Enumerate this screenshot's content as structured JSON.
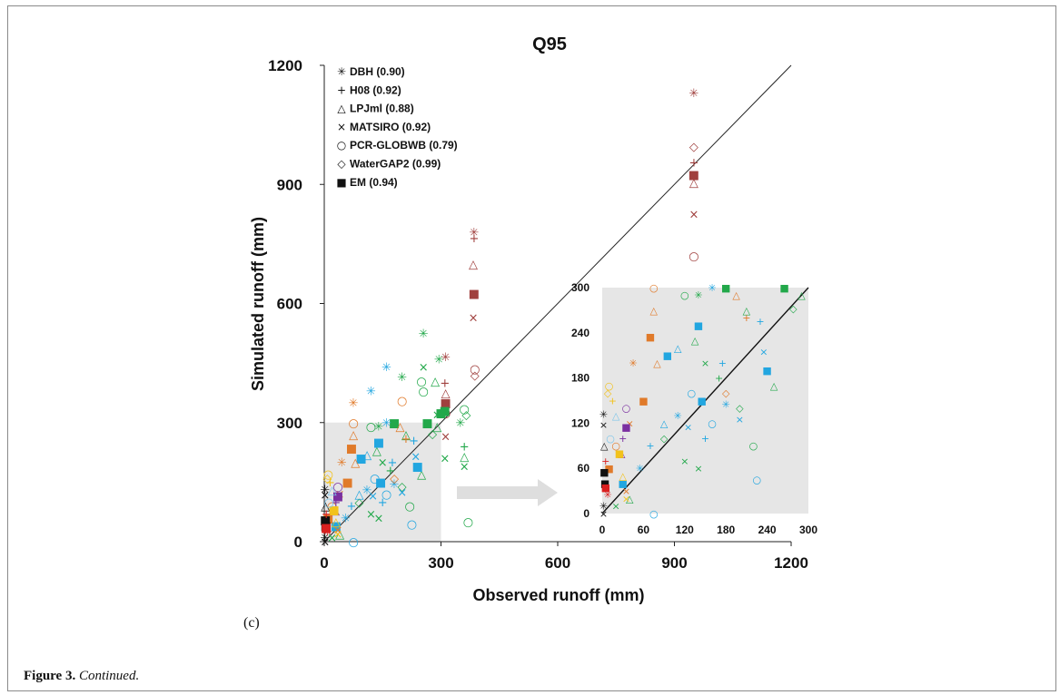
{
  "figure": {
    "panel_label": "(c)",
    "caption_number": "Figure 3.",
    "caption_text": "Continued."
  },
  "chart_data": {
    "type": "scatter",
    "title": "Q95",
    "xlabel": "Observed runoff (mm)",
    "ylabel": "Simulated runoff (mm)",
    "xlim": [
      0,
      1200
    ],
    "ylim": [
      0,
      1200
    ],
    "xticks": [
      "0",
      "300",
      "600",
      "900",
      "1200"
    ],
    "yticks": [
      "0",
      "300",
      "600",
      "900",
      "1200"
    ],
    "grid": false,
    "one_to_one_line": true,
    "legend_position": "top-left",
    "legend": [
      {
        "marker": "asterisk",
        "label": "DBH (0.90)"
      },
      {
        "marker": "plus",
        "label": "H08 (0.92)"
      },
      {
        "marker": "triangle",
        "label": "LPJml (0.88)"
      },
      {
        "marker": "cross",
        "label": "MATSIRO (0.92)"
      },
      {
        "marker": "circle",
        "label": "PCR-GLOBWB (0.79)"
      },
      {
        "marker": "diamond",
        "label": "WaterGAP2 (0.99)"
      },
      {
        "marker": "square",
        "label": "EM (0.94)"
      }
    ],
    "marker_glyphs": {
      "asterisk": "✳",
      "plus": "+",
      "triangle": "△",
      "cross": "×",
      "circle": "○",
      "diamond": "◇",
      "square": "■"
    },
    "colors": {
      "brown": "#a0403e",
      "green": "#22a84a",
      "blue": "#22a6e0",
      "orange": "#e07a2a",
      "purple": "#7b2fa0",
      "black": "#111111",
      "yellow": "#f2c21b",
      "red": "#d92020",
      "lightblue": "#7dc5ea"
    },
    "zoom_region": {
      "x": [
        0,
        300
      ],
      "y": [
        0,
        300
      ],
      "shade": "#e6e6e6"
    },
    "points": [
      {
        "x": 385,
        "y": 780,
        "m": "asterisk",
        "c": "brown"
      },
      {
        "x": 385,
        "y": 765,
        "m": "plus",
        "c": "brown"
      },
      {
        "x": 383,
        "y": 700,
        "m": "triangle",
        "c": "brown"
      },
      {
        "x": 385,
        "y": 625,
        "m": "square",
        "c": "brown"
      },
      {
        "x": 383,
        "y": 565,
        "m": "cross",
        "c": "brown"
      },
      {
        "x": 387,
        "y": 435,
        "m": "circle",
        "c": "brown"
      },
      {
        "x": 387,
        "y": 420,
        "m": "diamond",
        "c": "brown"
      },
      {
        "x": 312,
        "y": 465,
        "m": "asterisk",
        "c": "brown"
      },
      {
        "x": 310,
        "y": 400,
        "m": "plus",
        "c": "brown"
      },
      {
        "x": 312,
        "y": 375,
        "m": "triangle",
        "c": "brown"
      },
      {
        "x": 312,
        "y": 350,
        "m": "square",
        "c": "brown"
      },
      {
        "x": 312,
        "y": 325,
        "m": "circle",
        "c": "brown"
      },
      {
        "x": 312,
        "y": 265,
        "m": "cross",
        "c": "brown"
      },
      {
        "x": 950,
        "y": 1130,
        "m": "asterisk",
        "c": "brown"
      },
      {
        "x": 950,
        "y": 995,
        "m": "diamond",
        "c": "brown"
      },
      {
        "x": 950,
        "y": 955,
        "m": "plus",
        "c": "brown"
      },
      {
        "x": 950,
        "y": 925,
        "m": "square",
        "c": "brown"
      },
      {
        "x": 950,
        "y": 905,
        "m": "triangle",
        "c": "brown"
      },
      {
        "x": 950,
        "y": 825,
        "m": "cross",
        "c": "brown"
      },
      {
        "x": 950,
        "y": 720,
        "m": "circle",
        "c": "brown"
      },
      {
        "x": 255,
        "y": 525,
        "m": "asterisk",
        "c": "green"
      },
      {
        "x": 295,
        "y": 460,
        "m": "asterisk",
        "c": "green"
      },
      {
        "x": 255,
        "y": 440,
        "m": "cross",
        "c": "green"
      },
      {
        "x": 200,
        "y": 415,
        "m": "asterisk",
        "c": "green"
      },
      {
        "x": 250,
        "y": 405,
        "m": "circle",
        "c": "green"
      },
      {
        "x": 285,
        "y": 405,
        "m": "triangle",
        "c": "green"
      },
      {
        "x": 255,
        "y": 380,
        "m": "circle",
        "c": "green"
      },
      {
        "x": 310,
        "y": 330,
        "m": "square",
        "c": "green"
      },
      {
        "x": 300,
        "y": 325,
        "m": "square",
        "c": "green"
      },
      {
        "x": 290,
        "y": 320,
        "m": "cross",
        "c": "green"
      },
      {
        "x": 290,
        "y": 290,
        "m": "triangle",
        "c": "green"
      },
      {
        "x": 278,
        "y": 272,
        "m": "diamond",
        "c": "green"
      },
      {
        "x": 265,
        "y": 300,
        "m": "square",
        "c": "green"
      },
      {
        "x": 310,
        "y": 210,
        "m": "cross",
        "c": "green"
      },
      {
        "x": 350,
        "y": 300,
        "m": "asterisk",
        "c": "green"
      },
      {
        "x": 360,
        "y": 335,
        "m": "circle",
        "c": "green"
      },
      {
        "x": 365,
        "y": 320,
        "m": "diamond",
        "c": "green"
      },
      {
        "x": 360,
        "y": 240,
        "m": "plus",
        "c": "green"
      },
      {
        "x": 360,
        "y": 215,
        "m": "triangle",
        "c": "green"
      },
      {
        "x": 360,
        "y": 190,
        "m": "cross",
        "c": "green"
      },
      {
        "x": 370,
        "y": 50,
        "m": "circle",
        "c": "green"
      },
      {
        "x": 210,
        "y": 270,
        "m": "triangle",
        "c": "green"
      },
      {
        "x": 180,
        "y": 300,
        "m": "square",
        "c": "green"
      },
      {
        "x": 140,
        "y": 290,
        "m": "asterisk",
        "c": "green"
      },
      {
        "x": 120,
        "y": 290,
        "m": "circle",
        "c": "green"
      },
      {
        "x": 135,
        "y": 230,
        "m": "triangle",
        "c": "green"
      },
      {
        "x": 150,
        "y": 200,
        "m": "cross",
        "c": "green"
      },
      {
        "x": 170,
        "y": 180,
        "m": "plus",
        "c": "green"
      },
      {
        "x": 200,
        "y": 140,
        "m": "diamond",
        "c": "green"
      },
      {
        "x": 220,
        "y": 90,
        "m": "circle",
        "c": "green"
      },
      {
        "x": 120,
        "y": 70,
        "m": "cross",
        "c": "green"
      },
      {
        "x": 140,
        "y": 60,
        "m": "cross",
        "c": "green"
      },
      {
        "x": 250,
        "y": 170,
        "m": "triangle",
        "c": "green"
      },
      {
        "x": 90,
        "y": 100,
        "m": "diamond",
        "c": "green"
      },
      {
        "x": 40,
        "y": 20,
        "m": "triangle",
        "c": "green"
      },
      {
        "x": 20,
        "y": 10,
        "m": "cross",
        "c": "green"
      },
      {
        "x": 160,
        "y": 440,
        "m": "asterisk",
        "c": "blue"
      },
      {
        "x": 120,
        "y": 380,
        "m": "asterisk",
        "c": "blue"
      },
      {
        "x": 230,
        "y": 255,
        "m": "plus",
        "c": "blue"
      },
      {
        "x": 140,
        "y": 250,
        "m": "square",
        "c": "blue"
      },
      {
        "x": 110,
        "y": 220,
        "m": "triangle",
        "c": "blue"
      },
      {
        "x": 95,
        "y": 210,
        "m": "square",
        "c": "blue"
      },
      {
        "x": 160,
        "y": 300,
        "m": "asterisk",
        "c": "blue"
      },
      {
        "x": 175,
        "y": 200,
        "m": "plus",
        "c": "blue"
      },
      {
        "x": 130,
        "y": 160,
        "m": "circle",
        "c": "blue"
      },
      {
        "x": 145,
        "y": 150,
        "m": "square",
        "c": "blue"
      },
      {
        "x": 110,
        "y": 130,
        "m": "asterisk",
        "c": "blue"
      },
      {
        "x": 125,
        "y": 115,
        "m": "cross",
        "c": "blue"
      },
      {
        "x": 150,
        "y": 100,
        "m": "plus",
        "c": "blue"
      },
      {
        "x": 160,
        "y": 120,
        "m": "circle",
        "c": "blue"
      },
      {
        "x": 180,
        "y": 145,
        "m": "asterisk",
        "c": "blue"
      },
      {
        "x": 200,
        "y": 125,
        "m": "cross",
        "c": "blue"
      },
      {
        "x": 225,
        "y": 45,
        "m": "circle",
        "c": "blue"
      },
      {
        "x": 235,
        "y": 215,
        "m": "cross",
        "c": "blue"
      },
      {
        "x": 240,
        "y": 190,
        "m": "square",
        "c": "blue"
      },
      {
        "x": 90,
        "y": 120,
        "m": "triangle",
        "c": "blue"
      },
      {
        "x": 70,
        "y": 90,
        "m": "plus",
        "c": "blue"
      },
      {
        "x": 55,
        "y": 60,
        "m": "asterisk",
        "c": "blue"
      },
      {
        "x": 30,
        "y": 40,
        "m": "square",
        "c": "blue"
      },
      {
        "x": 75,
        "y": 0,
        "m": "circle",
        "c": "blue"
      },
      {
        "x": 80,
        "y": 200,
        "m": "triangle",
        "c": "orange"
      },
      {
        "x": 75,
        "y": 350,
        "m": "asterisk",
        "c": "orange"
      },
      {
        "x": 75,
        "y": 300,
        "m": "circle",
        "c": "orange"
      },
      {
        "x": 75,
        "y": 270,
        "m": "triangle",
        "c": "orange"
      },
      {
        "x": 45,
        "y": 200,
        "m": "asterisk",
        "c": "orange"
      },
      {
        "x": 200,
        "y": 355,
        "m": "circle",
        "c": "orange"
      },
      {
        "x": 195,
        "y": 290,
        "m": "triangle",
        "c": "orange"
      },
      {
        "x": 210,
        "y": 260,
        "m": "plus",
        "c": "orange"
      },
      {
        "x": 180,
        "y": 160,
        "m": "diamond",
        "c": "orange"
      },
      {
        "x": 60,
        "y": 150,
        "m": "square",
        "c": "orange"
      },
      {
        "x": 70,
        "y": 235,
        "m": "square",
        "c": "orange"
      },
      {
        "x": 40,
        "y": 120,
        "m": "cross",
        "c": "orange"
      },
      {
        "x": 20,
        "y": 90,
        "m": "circle",
        "c": "orange"
      },
      {
        "x": 35,
        "y": 30,
        "m": "cross",
        "c": "orange"
      },
      {
        "x": 10,
        "y": 60,
        "m": "square",
        "c": "orange"
      },
      {
        "x": 35,
        "y": 140,
        "m": "circle",
        "c": "purple"
      },
      {
        "x": 35,
        "y": 115,
        "m": "square",
        "c": "purple"
      },
      {
        "x": 30,
        "y": 100,
        "m": "plus",
        "c": "purple"
      },
      {
        "x": 28,
        "y": 80,
        "m": "triangle",
        "c": "purple"
      },
      {
        "x": 2,
        "y": 132,
        "m": "asterisk",
        "c": "black"
      },
      {
        "x": 2,
        "y": 118,
        "m": "cross",
        "c": "black"
      },
      {
        "x": 3,
        "y": 90,
        "m": "triangle",
        "c": "black"
      },
      {
        "x": 3,
        "y": 55,
        "m": "square",
        "c": "black"
      },
      {
        "x": 4,
        "y": 40,
        "m": "square",
        "c": "black"
      },
      {
        "x": 2,
        "y": 10,
        "m": "asterisk",
        "c": "black"
      },
      {
        "x": 2,
        "y": 0,
        "m": "cross",
        "c": "black"
      },
      {
        "x": 10,
        "y": 170,
        "m": "circle",
        "c": "yellow"
      },
      {
        "x": 8,
        "y": 160,
        "m": "diamond",
        "c": "yellow"
      },
      {
        "x": 15,
        "y": 150,
        "m": "plus",
        "c": "yellow"
      },
      {
        "x": 25,
        "y": 80,
        "m": "square",
        "c": "yellow"
      },
      {
        "x": 30,
        "y": 50,
        "m": "triangle",
        "c": "yellow"
      },
      {
        "x": 35,
        "y": 20,
        "m": "cross",
        "c": "yellow"
      },
      {
        "x": 5,
        "y": 35,
        "m": "square",
        "c": "red"
      },
      {
        "x": 8,
        "y": 25,
        "m": "asterisk",
        "c": "red"
      },
      {
        "x": 5,
        "y": 70,
        "m": "plus",
        "c": "red"
      },
      {
        "x": 12,
        "y": 100,
        "m": "circle",
        "c": "lightblue"
      },
      {
        "x": 20,
        "y": 130,
        "m": "triangle",
        "c": "lightblue"
      }
    ],
    "inset": {
      "xlim": [
        0,
        300
      ],
      "ylim": [
        0,
        300
      ],
      "xticks": [
        "0",
        "60",
        "120",
        "180",
        "240",
        "300"
      ],
      "yticks": [
        "0",
        "60",
        "120",
        "180",
        "240",
        "300"
      ],
      "one_to_one_line": true,
      "shade": "#e6e6e6"
    }
  }
}
